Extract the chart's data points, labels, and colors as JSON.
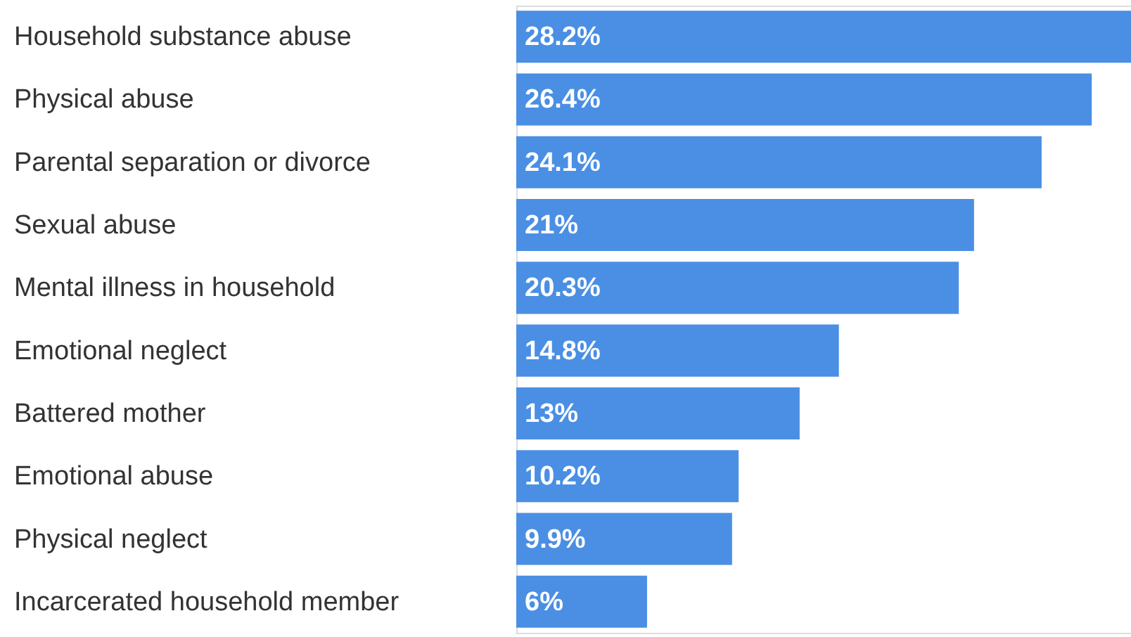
{
  "chart_data": {
    "type": "bar",
    "orientation": "horizontal",
    "categories": [
      "Household substance abuse",
      "Physical abuse",
      "Parental separation or divorce",
      "Sexual abuse",
      "Mental illness in household",
      "Emotional neglect",
      "Battered mother",
      "Emotional abuse",
      "Physical neglect",
      "Incarcerated household member"
    ],
    "values": [
      28.2,
      26.4,
      24.1,
      21,
      20.3,
      14.8,
      13,
      10.2,
      9.9,
      6
    ],
    "value_labels": [
      "28.2%",
      "26.4%",
      "24.1%",
      "21%",
      "20.3%",
      "14.8%",
      "13%",
      "10.2%",
      "9.9%",
      "6%"
    ],
    "color": "#4a8fe3"
  }
}
